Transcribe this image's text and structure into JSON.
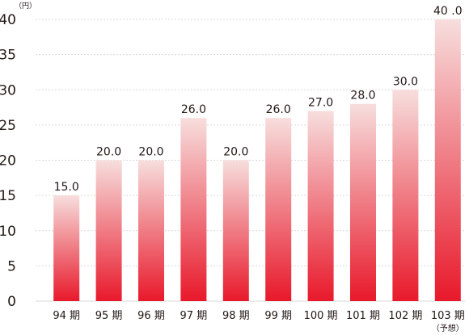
{
  "chart_data": {
    "type": "bar",
    "unit_label": "（円）",
    "categories": [
      "94 期",
      "95 期",
      "96 期",
      "97 期",
      "98 期",
      "99 期",
      "100 期",
      "101 期",
      "102 期",
      "103 期"
    ],
    "category_notes": [
      "",
      "",
      "",
      "",
      "",
      "",
      "",
      "",
      "",
      "（予想）"
    ],
    "values": [
      15.0,
      20.0,
      20.0,
      26.0,
      20.0,
      26.0,
      27.0,
      28.0,
      30.0,
      40.0
    ],
    "value_labels": [
      "15.0",
      "20.0",
      "20.0",
      "26.0",
      "20.0",
      "26.0",
      "27.0",
      "28.0",
      "30.0",
      "40 .0"
    ],
    "yticks": [
      "0",
      "5",
      "10",
      "15",
      "20",
      "25",
      "30",
      "35",
      "40"
    ],
    "ylim": [
      0,
      40
    ],
    "grid": true,
    "colors": {
      "bar_top": "#f7dedd",
      "bar_bottom": "#e8192b",
      "grid": "#d9d9d9",
      "text": "#231815"
    }
  }
}
